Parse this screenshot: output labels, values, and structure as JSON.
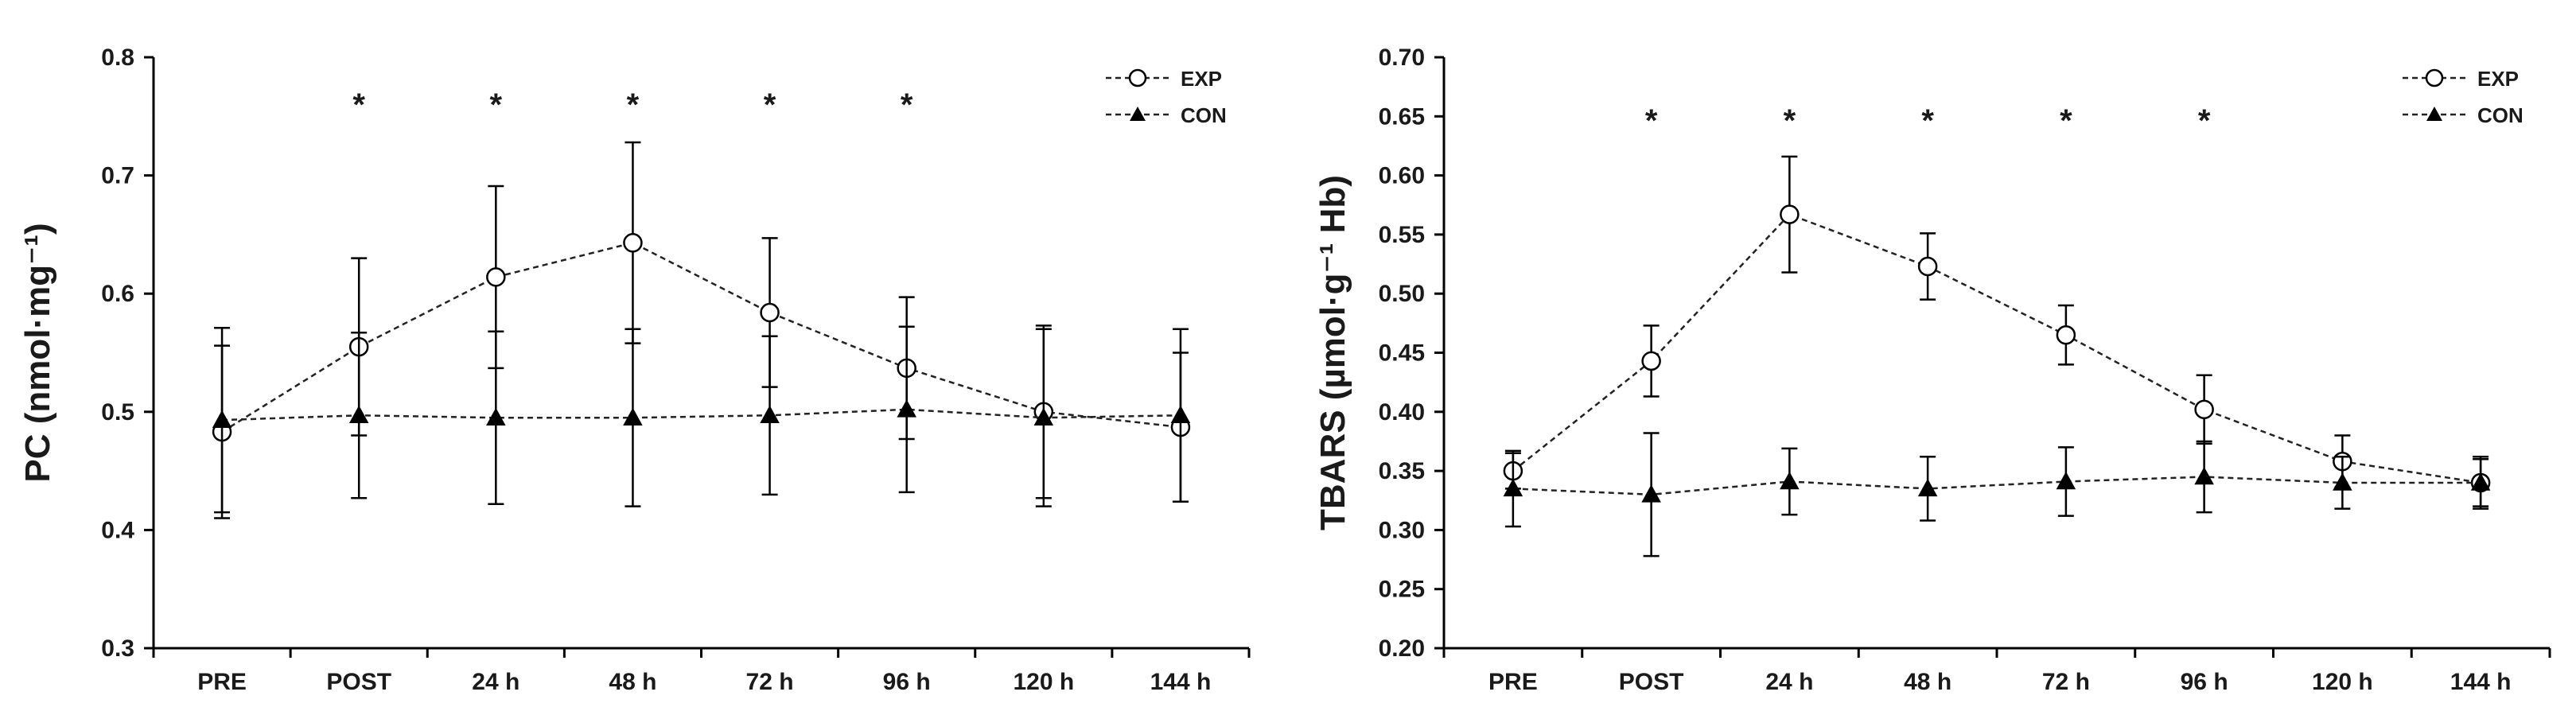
{
  "chart_data": [
    {
      "type": "line",
      "title": "",
      "xlabel": "",
      "ylabel": "PC (nmol·mg⁻¹)",
      "categories": [
        "PRE",
        "POST",
        "24 h",
        "48 h",
        "72 h",
        "96 h",
        "120 h",
        "144 h"
      ],
      "ylim": [
        0.3,
        0.8
      ],
      "yticks": [
        "0.3",
        "0.4",
        "0.5",
        "0.6",
        "0.7",
        "0.8"
      ],
      "series": [
        {
          "name": "EXP",
          "marker": "open-circle",
          "values": [
            0.483,
            0.555,
            0.614,
            0.643,
            0.584,
            0.537,
            0.5,
            0.487
          ],
          "errors": [
            0.073,
            0.075,
            0.077,
            0.085,
            0.063,
            0.06,
            0.073,
            0.063
          ]
        },
        {
          "name": "CON",
          "marker": "filled-triangle",
          "values": [
            0.493,
            0.497,
            0.495,
            0.495,
            0.497,
            0.502,
            0.495,
            0.497
          ],
          "errors": [
            0.078,
            0.07,
            0.073,
            0.075,
            0.067,
            0.07,
            0.075,
            0.073
          ]
        }
      ],
      "significance": {
        "symbol": "*",
        "categories": [
          "POST",
          "24 h",
          "48 h",
          "72 h",
          "96 h"
        ]
      },
      "legend_position": "top-right",
      "grid": false
    },
    {
      "type": "line",
      "title": "",
      "xlabel": "",
      "ylabel": "TBARS (µmol·g⁻¹ Hb)",
      "categories": [
        "PRE",
        "POST",
        "24 h",
        "48 h",
        "72 h",
        "96 h",
        "120 h",
        "144 h"
      ],
      "ylim": [
        0.2,
        0.7
      ],
      "yticks": [
        "0.20",
        "0.25",
        "0.30",
        "0.35",
        "0.40",
        "0.45",
        "0.50",
        "0.55",
        "0.60",
        "0.65",
        "0.70"
      ],
      "series": [
        {
          "name": "EXP",
          "marker": "open-circle",
          "values": [
            0.35,
            0.443,
            0.567,
            0.523,
            0.465,
            0.402,
            0.358,
            0.34
          ],
          "errors": [
            0.015,
            0.03,
            0.049,
            0.028,
            0.025,
            0.029,
            0.022,
            0.02
          ]
        },
        {
          "name": "CON",
          "marker": "filled-triangle",
          "values": [
            0.335,
            0.33,
            0.341,
            0.335,
            0.341,
            0.345,
            0.34,
            0.34
          ],
          "errors": [
            0.032,
            0.052,
            0.028,
            0.027,
            0.029,
            0.03,
            0.022,
            0.022
          ]
        }
      ],
      "significance": {
        "symbol": "*",
        "categories": [
          "POST",
          "24 h",
          "48 h",
          "72 h",
          "96 h"
        ]
      },
      "legend_position": "top-right",
      "grid": false
    }
  ]
}
